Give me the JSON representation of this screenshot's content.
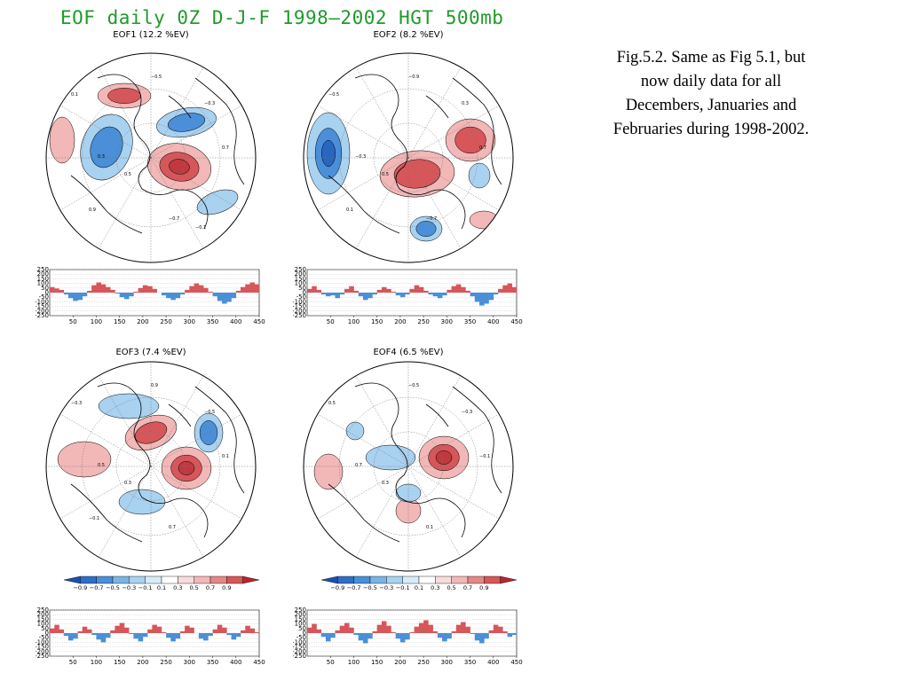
{
  "title": "EOF daily 0Z D-J-F 1998–2002 HGT 500mb",
  "caption": "Fig.5.2. Same as Fig 5.1, but now daily data for all Decembers, Januaries and Februaries during 1998-2002.",
  "colors": {
    "title": "#1f9a2a",
    "positive": "#d6565a",
    "positive_light": "#f2b7b7",
    "negative": "#4a8fd8",
    "negative_light": "#a9d1f0"
  },
  "colorbar": {
    "ticks": [
      "−0.9",
      "−0.7",
      "−0.5",
      "−0.3",
      "−0.1",
      "0.1",
      "0.3",
      "0.5",
      "0.7",
      "0.9"
    ],
    "colors": [
      "#1c4fb0",
      "#2f6ec8",
      "#4a8fd8",
      "#78b4e6",
      "#a9d1f0",
      "#d8ecf8",
      "#ffffff",
      "#f8dcdc",
      "#f2b7b7",
      "#e58787",
      "#d6565a",
      "#b8262c"
    ]
  },
  "chart_data": [
    {
      "type": "heatmap",
      "title": "EOF1 (12.2 %EV)",
      "projection": "polar-stereographic",
      "map_labels": [
        "0.1",
        "0.3",
        "0.5",
        "−0.3",
        "−0.5",
        "−0.7",
        "0.7",
        "0.9",
        "−0.1"
      ],
      "anomalies": [
        {
          "sign": 1,
          "strength": 0.9
        },
        {
          "sign": 1,
          "strength": 0.6
        },
        {
          "sign": 1,
          "strength": 0.3
        },
        {
          "sign": -1,
          "strength": 0.7
        },
        {
          "sign": -1,
          "strength": 0.6
        },
        {
          "sign": -1,
          "strength": 0.3
        }
      ],
      "pc_series": {
        "x_ticks": [
          50,
          100,
          150,
          200,
          250,
          300,
          350,
          400,
          450
        ],
        "y_ticks": [
          250,
          200,
          150,
          100,
          50,
          0,
          -50,
          -100,
          -150,
          -200,
          -250
        ],
        "xlim": [
          0,
          450
        ],
        "ylim": [
          -250,
          250
        ],
        "values": [
          60,
          45,
          30,
          -20,
          -60,
          -90,
          -80,
          -40,
          20,
          80,
          110,
          90,
          60,
          30,
          -10,
          -50,
          -70,
          -40,
          10,
          50,
          80,
          70,
          40,
          0,
          -30,
          -60,
          -80,
          -60,
          -20,
          30,
          70,
          100,
          80,
          50,
          10,
          -40,
          -90,
          -120,
          -100,
          -60,
          20,
          60,
          90,
          110,
          90
        ]
      }
    },
    {
      "type": "heatmap",
      "title": "EOF2 (8.2 %EV)",
      "projection": "polar-stereographic",
      "map_labels": [
        "−0.5",
        "−0.3",
        "0.5",
        "0.3",
        "−0.9",
        "−0.7",
        "0.7",
        "0.1"
      ],
      "anomalies": [
        {
          "sign": -1,
          "strength": 0.9
        },
        {
          "sign": 1,
          "strength": 0.7
        },
        {
          "sign": 1,
          "strength": 0.5
        },
        {
          "sign": -1,
          "strength": 0.5
        },
        {
          "sign": -1,
          "strength": 0.3
        },
        {
          "sign": 1,
          "strength": 0.3
        }
      ],
      "pc_series": {
        "x_ticks": [
          50,
          100,
          150,
          200,
          250,
          300,
          350,
          400,
          450
        ],
        "y_ticks": [
          250,
          200,
          150,
          100,
          50,
          0,
          -50,
          -100,
          -150,
          -200,
          -250
        ],
        "xlim": [
          0,
          450
        ],
        "ylim": [
          -250,
          250
        ],
        "values": [
          40,
          70,
          30,
          -20,
          -40,
          -30,
          -60,
          -20,
          40,
          70,
          20,
          -40,
          -80,
          -60,
          -20,
          30,
          60,
          40,
          10,
          -30,
          -50,
          -20,
          40,
          80,
          60,
          20,
          -20,
          -40,
          -60,
          -30,
          30,
          70,
          90,
          60,
          20,
          -40,
          -100,
          -140,
          -120,
          -80,
          -20,
          40,
          80,
          100,
          60
        ]
      }
    },
    {
      "type": "heatmap",
      "title": "EOF3 (7.4 %EV)",
      "projection": "polar-stereographic",
      "map_labels": [
        "−0.3",
        "0.5",
        "0.3",
        "−0.5",
        "0.9",
        "0.7",
        "0.1",
        "−0.1"
      ],
      "anomalies": [
        {
          "sign": 1,
          "strength": 0.9
        },
        {
          "sign": 1,
          "strength": 0.6
        },
        {
          "sign": 1,
          "strength": 0.4
        },
        {
          "sign": -1,
          "strength": 0.5
        },
        {
          "sign": -1,
          "strength": 0.4
        },
        {
          "sign": -1,
          "strength": 0.3
        }
      ],
      "pc_series": {
        "x_ticks": [
          50,
          100,
          150,
          200,
          250,
          300,
          350,
          400,
          450
        ],
        "y_ticks": [
          250,
          200,
          150,
          100,
          50,
          0,
          -50,
          -100,
          -150,
          -200,
          -250
        ],
        "xlim": [
          0,
          450
        ],
        "ylim": [
          -250,
          250
        ],
        "values": [
          50,
          90,
          40,
          -30,
          -80,
          -60,
          20,
          70,
          40,
          -20,
          -70,
          -100,
          -50,
          30,
          80,
          110,
          60,
          -10,
          -60,
          -90,
          -40,
          40,
          90,
          70,
          10,
          -50,
          -90,
          -60,
          20,
          80,
          60,
          0,
          -60,
          -80,
          -30,
          40,
          90,
          60,
          -20,
          -70,
          -40,
          30,
          80,
          50,
          10
        ]
      }
    },
    {
      "type": "heatmap",
      "title": "EOF4 (6.5 %EV)",
      "projection": "polar-stereographic",
      "map_labels": [
        "0.5",
        "0.7",
        "0.3",
        "−0.3",
        "−0.5",
        "0.1",
        "−0.1"
      ],
      "anomalies": [
        {
          "sign": 1,
          "strength": 0.9
        },
        {
          "sign": 1,
          "strength": 0.3
        },
        {
          "sign": 1,
          "strength": 0.2
        },
        {
          "sign": -1,
          "strength": 0.4
        },
        {
          "sign": -1,
          "strength": 0.3
        },
        {
          "sign": -1,
          "strength": 0.2
        }
      ],
      "pc_series": {
        "x_ticks": [
          50,
          100,
          150,
          200,
          250,
          300,
          350,
          400,
          450
        ],
        "y_ticks": [
          250,
          200,
          150,
          100,
          50,
          0,
          -50,
          -100,
          -150,
          -200,
          -250
        ],
        "xlim": [
          0,
          450
        ],
        "ylim": [
          -250,
          250
        ],
        "values": [
          60,
          100,
          40,
          -40,
          -90,
          -50,
          30,
          80,
          110,
          60,
          -20,
          -80,
          -110,
          -60,
          20,
          90,
          130,
          80,
          10,
          -60,
          -100,
          -70,
          10,
          70,
          110,
          140,
          90,
          20,
          -50,
          -90,
          -60,
          20,
          90,
          120,
          70,
          -10,
          -80,
          -110,
          -60,
          30,
          90,
          70,
          20,
          -40,
          -20
        ]
      }
    }
  ]
}
